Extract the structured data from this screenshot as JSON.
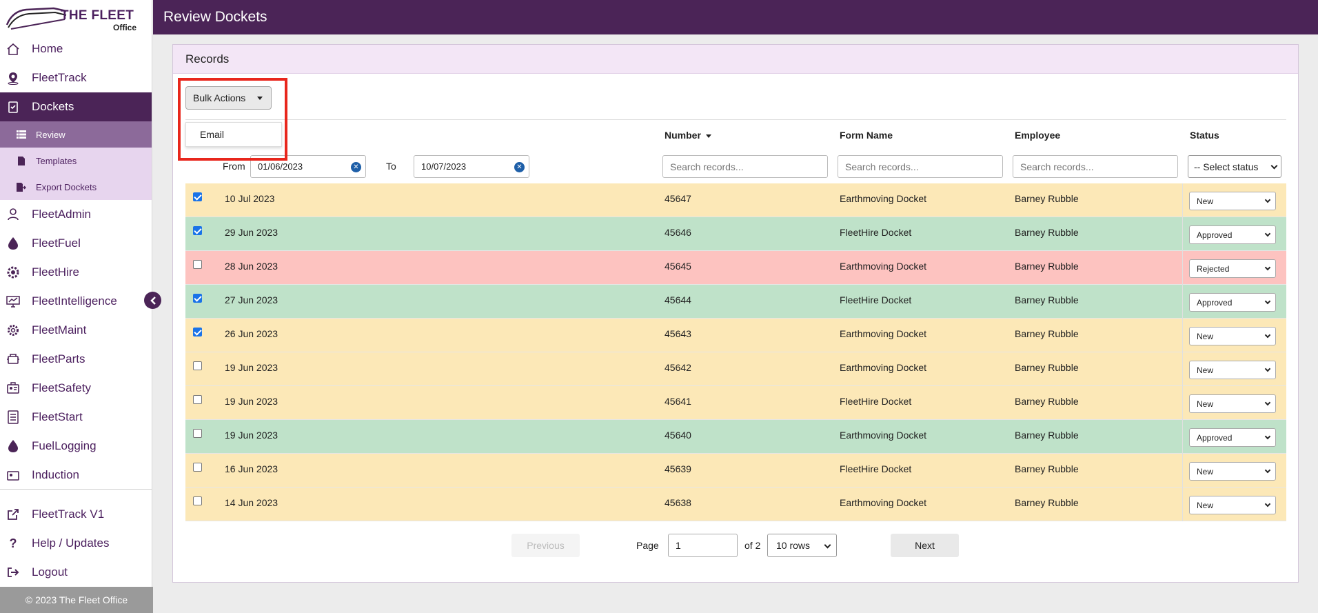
{
  "brand": {
    "title": "THE FLEET",
    "subtitle": "Office"
  },
  "page_title": "Review Dockets",
  "sidebar": {
    "items": [
      {
        "label": "Home",
        "icon": "home-icon"
      },
      {
        "label": "FleetTrack",
        "icon": "location-pin-icon"
      },
      {
        "label": "Dockets",
        "icon": "clipboard-check-icon"
      },
      {
        "label": "FleetAdmin",
        "icon": "user-admin-icon"
      },
      {
        "label": "FleetFuel",
        "icon": "fuel-drop-icon"
      },
      {
        "label": "FleetHire",
        "icon": "hire-gear-icon"
      },
      {
        "label": "FleetIntelligence",
        "icon": "monitor-chart-icon"
      },
      {
        "label": "FleetMaint",
        "icon": "gear-icon"
      },
      {
        "label": "FleetParts",
        "icon": "engine-part-icon"
      },
      {
        "label": "FleetSafety",
        "icon": "safety-badge-icon"
      },
      {
        "label": "FleetStart",
        "icon": "checklist-icon"
      },
      {
        "label": "FuelLogging",
        "icon": "fuel-drop-icon"
      },
      {
        "label": "Induction",
        "icon": "id-card-icon"
      }
    ],
    "sub_items": [
      {
        "label": "Review",
        "icon": "list-icon"
      },
      {
        "label": "Templates",
        "icon": "document-icon"
      },
      {
        "label": "Export Dockets",
        "icon": "export-file-icon"
      }
    ],
    "bottom": [
      {
        "label": "FleetTrack V1",
        "icon": "external-link-icon"
      },
      {
        "label": "Help / Updates",
        "icon": "question-icon"
      },
      {
        "label": "Logout",
        "icon": "logout-icon"
      }
    ],
    "footer": "2023 The Fleet Office",
    "active_color": "#4b2457"
  },
  "records": {
    "heading": "Records",
    "bulk_actions_label": "Bulk Actions",
    "bulk_menu": [
      "Email"
    ],
    "columns": {
      "number": "Number",
      "form_name": "Form Name",
      "employee": "Employee",
      "status": "Status"
    },
    "filters": {
      "from_label": "From",
      "from_value": "01/06/2023",
      "to_label": "To",
      "to_value": "10/07/2023",
      "search_placeholder": "Search records...",
      "status_placeholder": "-- Select status"
    },
    "rows": [
      {
        "date": "10 Jul 2023",
        "number": "45647",
        "form": "Earthmoving Docket",
        "employee": "Barney Rubble",
        "status": "New",
        "checked": true
      },
      {
        "date": "29 Jun 2023",
        "number": "45646",
        "form": "FleetHire Docket",
        "employee": "Barney Rubble",
        "status": "Approved",
        "checked": true
      },
      {
        "date": "28 Jun 2023",
        "number": "45645",
        "form": "Earthmoving Docket",
        "employee": "Barney Rubble",
        "status": "Rejected",
        "checked": false
      },
      {
        "date": "27 Jun 2023",
        "number": "45644",
        "form": "FleetHire Docket",
        "employee": "Barney Rubble",
        "status": "Approved",
        "checked": true
      },
      {
        "date": "26 Jun 2023",
        "number": "45643",
        "form": "Earthmoving Docket",
        "employee": "Barney Rubble",
        "status": "New",
        "checked": true
      },
      {
        "date": "19 Jun 2023",
        "number": "45642",
        "form": "Earthmoving Docket",
        "employee": "Barney Rubble",
        "status": "New",
        "checked": false
      },
      {
        "date": "19 Jun 2023",
        "number": "45641",
        "form": "FleetHire Docket",
        "employee": "Barney Rubble",
        "status": "New",
        "checked": false
      },
      {
        "date": "19 Jun 2023",
        "number": "45640",
        "form": "Earthmoving Docket",
        "employee": "Barney Rubble",
        "status": "Approved",
        "checked": false
      },
      {
        "date": "16 Jun 2023",
        "number": "45639",
        "form": "FleetHire Docket",
        "employee": "Barney Rubble",
        "status": "New",
        "checked": false
      },
      {
        "date": "14 Jun 2023",
        "number": "45638",
        "form": "Earthmoving Docket",
        "employee": "Barney Rubble",
        "status": "New",
        "checked": false
      }
    ],
    "status_colors": {
      "New": "#fce8b7",
      "Approved": "#bfe2c9",
      "Rejected": "#fdc3c0"
    }
  },
  "pagination": {
    "previous": "Previous",
    "page_label": "Page",
    "page_value": "1",
    "of_label": "of 2",
    "rows_value": "10 rows",
    "next": "Next"
  },
  "highlight_color": "#e8261c"
}
